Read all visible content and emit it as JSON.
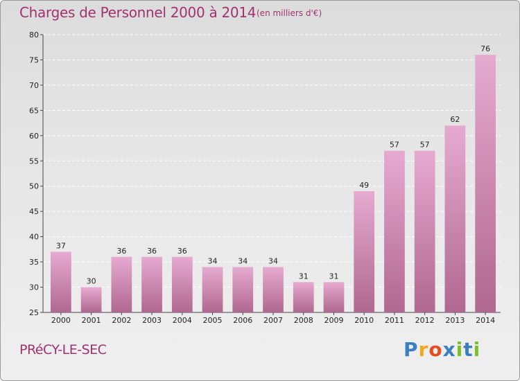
{
  "header": {
    "title": "Charges de Personnel 2000 à 2014",
    "subtitle": "(en milliers d'€)"
  },
  "footer": {
    "commune": "PRéCY-LE-SEC",
    "logo": {
      "text": "Proxiti",
      "letters": [
        "P",
        "r",
        "o",
        "x",
        "i",
        "t",
        "i"
      ],
      "colors": [
        "#3a7fc1",
        "#f0a81e",
        "#e84c1e",
        "#3a7fc1",
        "#7bbf2a",
        "#3a7fc1",
        "#7bbf2a"
      ]
    }
  },
  "colors": {
    "bar_light": "#e6aad0",
    "bar_dark": "#b06890",
    "text_accent": "#a0326e",
    "grid": "#ffffff",
    "axis": "#444444"
  },
  "chart_data": {
    "type": "bar",
    "categories": [
      "2000",
      "2001",
      "2002",
      "2003",
      "2004",
      "2005",
      "2006",
      "2007",
      "2008",
      "2009",
      "2010",
      "2011",
      "2012",
      "2013",
      "2014"
    ],
    "values": [
      37,
      30,
      36,
      36,
      36,
      34,
      34,
      34,
      31,
      31,
      49,
      57,
      57,
      62,
      76
    ],
    "data_labels": [
      "37",
      "30",
      "36",
      "36",
      "36",
      "34",
      "34",
      "34",
      "31",
      "31",
      "49",
      "57",
      "57",
      "62",
      "76"
    ],
    "ylim": [
      25,
      80
    ],
    "yticks": [
      25,
      30,
      35,
      40,
      45,
      50,
      55,
      60,
      65,
      70,
      75,
      80
    ],
    "ytick_labels": [
      "25",
      "30",
      "35",
      "40",
      "45",
      "50",
      "55",
      "60",
      "65",
      "70",
      "75",
      "80"
    ],
    "grid": true,
    "title": "Charges de Personnel 2000 à 2014",
    "xlabel": "",
    "ylabel": ""
  }
}
